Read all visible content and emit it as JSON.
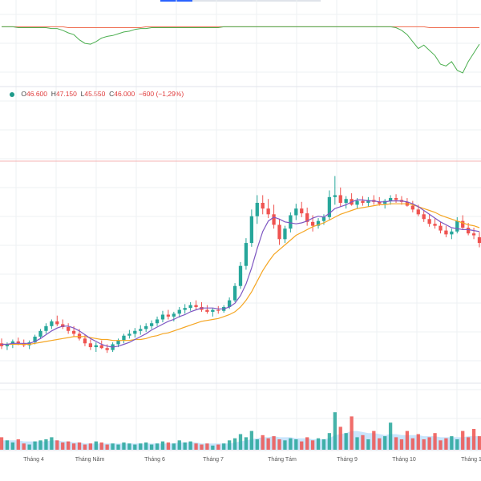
{
  "legend": {
    "o_label": "O",
    "o_value": "46.600",
    "h_label": "H",
    "h_value": "47.150",
    "l_label": "L",
    "l_value": "45.550",
    "c_label": "C",
    "c_value": "46.000",
    "change": "−600 (−1,29%)"
  },
  "colors": {
    "up": "#26a69a",
    "down": "#ef5350",
    "ma_fast": "#7e57c2",
    "ma_slow": "#f5a623",
    "indicator_green": "#4caf50",
    "indicator_red": "#ef6c4f",
    "volume_ma_area": "#bbdefb",
    "grid": "#eef0f3",
    "price_line": "#f4b4b4"
  },
  "chart_data": {
    "type": "candlestick",
    "x_axis_labels": [
      "Tháng 4",
      "Tháng Năm",
      "Tháng 6",
      "Tháng 7",
      "Tháng Tám",
      "Tháng 9",
      "Tháng 10",
      "Tháng 1"
    ],
    "grid": true,
    "last_close": 46.0,
    "price_range_approx": [
      32,
      58
    ],
    "candles_ohlc": [
      [
        35.5,
        36.0,
        34.9,
        35.2
      ],
      [
        35.2,
        35.6,
        34.8,
        35.4
      ],
      [
        35.4,
        35.9,
        35.0,
        35.7
      ],
      [
        35.7,
        36.1,
        35.3,
        35.5
      ],
      [
        35.5,
        35.9,
        35.1,
        35.3
      ],
      [
        35.3,
        35.8,
        34.9,
        35.6
      ],
      [
        35.6,
        36.4,
        35.4,
        36.2
      ],
      [
        36.2,
        37.0,
        36.0,
        36.8
      ],
      [
        36.8,
        37.6,
        36.5,
        37.3
      ],
      [
        37.3,
        38.0,
        37.0,
        37.8
      ],
      [
        37.8,
        38.4,
        37.3,
        37.5
      ],
      [
        37.5,
        38.0,
        37.0,
        37.2
      ],
      [
        37.2,
        37.6,
        36.5,
        36.8
      ],
      [
        36.8,
        37.3,
        36.2,
        36.5
      ],
      [
        36.5,
        37.0,
        35.8,
        36.0
      ],
      [
        36.0,
        36.4,
        35.2,
        35.5
      ],
      [
        35.5,
        35.9,
        34.8,
        35.1
      ],
      [
        35.1,
        35.6,
        34.6,
        35.3
      ],
      [
        35.3,
        35.8,
        34.9,
        35.0
      ],
      [
        35.0,
        35.4,
        34.5,
        34.8
      ],
      [
        34.8,
        35.6,
        34.6,
        35.4
      ],
      [
        35.4,
        36.0,
        35.1,
        35.8
      ],
      [
        35.8,
        36.5,
        35.5,
        36.3
      ],
      [
        36.3,
        36.9,
        36.0,
        36.5
      ],
      [
        36.5,
        37.1,
        36.1,
        36.8
      ],
      [
        36.8,
        37.4,
        36.4,
        37.0
      ],
      [
        37.0,
        37.6,
        36.7,
        37.3
      ],
      [
        37.3,
        37.9,
        37.0,
        37.6
      ],
      [
        37.6,
        38.3,
        37.3,
        38.0
      ],
      [
        38.0,
        38.9,
        37.7,
        38.5
      ],
      [
        38.5,
        39.0,
        38.0,
        38.3
      ],
      [
        38.3,
        38.8,
        37.8,
        38.6
      ],
      [
        38.6,
        39.3,
        38.2,
        39.0
      ],
      [
        39.0,
        39.6,
        38.6,
        39.2
      ],
      [
        39.2,
        39.8,
        38.9,
        39.5
      ],
      [
        39.5,
        40.0,
        39.0,
        39.3
      ],
      [
        39.3,
        39.8,
        38.8,
        39.0
      ],
      [
        39.0,
        39.5,
        38.6,
        38.8
      ],
      [
        38.8,
        39.2,
        38.3,
        39.0
      ],
      [
        39.0,
        39.4,
        38.6,
        38.9
      ],
      [
        38.9,
        39.5,
        38.7,
        39.3
      ],
      [
        39.3,
        40.3,
        39.1,
        40.0
      ],
      [
        40.0,
        41.8,
        39.8,
        41.5
      ],
      [
        41.5,
        44.0,
        41.2,
        43.6
      ],
      [
        43.6,
        46.5,
        43.2,
        46.0
      ],
      [
        46.0,
        49.5,
        45.6,
        48.8
      ],
      [
        48.8,
        51.0,
        48.0,
        50.2
      ],
      [
        50.2,
        51.0,
        49.0,
        49.6
      ],
      [
        49.6,
        50.6,
        48.6,
        49.0
      ],
      [
        49.0,
        50.0,
        47.5,
        47.9
      ],
      [
        47.9,
        48.5,
        45.8,
        46.4
      ],
      [
        46.4,
        47.8,
        46.0,
        47.5
      ],
      [
        47.5,
        49.2,
        47.1,
        48.9
      ],
      [
        48.9,
        50.1,
        48.4,
        49.6
      ],
      [
        49.6,
        50.3,
        48.7,
        49.1
      ],
      [
        49.1,
        49.7,
        47.8,
        48.2
      ],
      [
        48.2,
        48.9,
        47.2,
        47.8
      ],
      [
        47.8,
        48.6,
        47.5,
        48.3
      ],
      [
        48.3,
        49.0,
        47.9,
        48.7
      ],
      [
        48.7,
        51.5,
        48.4,
        50.8
      ],
      [
        50.8,
        53.0,
        50.0,
        51.0
      ],
      [
        51.0,
        51.8,
        49.8,
        50.2
      ],
      [
        50.2,
        50.9,
        49.6,
        50.6
      ],
      [
        50.6,
        51.2,
        49.9,
        50.0
      ],
      [
        50.0,
        50.7,
        49.6,
        50.4
      ],
      [
        50.4,
        50.9,
        49.9,
        50.2
      ],
      [
        50.2,
        50.8,
        49.8,
        50.5
      ],
      [
        50.5,
        51.0,
        50.0,
        50.3
      ],
      [
        50.3,
        50.8,
        49.9,
        50.1
      ],
      [
        50.1,
        50.6,
        49.6,
        50.4
      ],
      [
        50.4,
        51.0,
        50.0,
        50.7
      ],
      [
        50.7,
        51.1,
        50.2,
        50.5
      ],
      [
        50.5,
        50.9,
        50.0,
        50.3
      ],
      [
        50.3,
        50.7,
        49.8,
        49.9
      ],
      [
        49.9,
        50.4,
        49.2,
        49.5
      ],
      [
        49.5,
        50.0,
        48.8,
        49.0
      ],
      [
        49.0,
        49.4,
        48.2,
        48.5
      ],
      [
        48.5,
        49.0,
        47.7,
        48.0
      ],
      [
        48.0,
        48.6,
        47.5,
        47.8
      ],
      [
        47.8,
        48.2,
        47.0,
        47.3
      ],
      [
        47.3,
        47.8,
        46.6,
        46.9
      ],
      [
        46.9,
        47.5,
        46.4,
        47.2
      ],
      [
        47.2,
        48.7,
        47.0,
        48.3
      ],
      [
        48.3,
        48.9,
        47.4,
        47.6
      ],
      [
        47.6,
        48.1,
        46.8,
        47.0
      ],
      [
        47.0,
        47.6,
        46.4,
        46.8
      ],
      [
        46.6,
        47.15,
        45.55,
        46.0
      ]
    ],
    "series": [
      {
        "type": "line",
        "role": "moving average (short)",
        "values": [
          35.4,
          35.4,
          35.5,
          35.5,
          35.5,
          35.5,
          35.7,
          36.0,
          36.4,
          36.8,
          37.1,
          37.3,
          37.3,
          37.1,
          36.8,
          36.4,
          36.0,
          35.7,
          35.4,
          35.2,
          35.1,
          35.2,
          35.4,
          35.6,
          35.9,
          36.2,
          36.5,
          36.9,
          37.2,
          37.5,
          37.8,
          38.0,
          38.3,
          38.5,
          38.8,
          39.0,
          39.2,
          39.2,
          39.2,
          39.1,
          39.1,
          39.3,
          39.7,
          40.5,
          41.7,
          43.4,
          45.4,
          47.2,
          48.3,
          48.7,
          48.5,
          48.2,
          48.1,
          48.0,
          48.1,
          48.3,
          48.6,
          48.8,
          48.7,
          49.1,
          49.6,
          49.8,
          50.0,
          50.3,
          50.5,
          50.5,
          50.4,
          50.4,
          50.3,
          50.3,
          50.4,
          50.4,
          50.4,
          50.3,
          50.1,
          49.8,
          49.4,
          49.0,
          48.6,
          48.2,
          47.9,
          47.6,
          47.5,
          47.4,
          47.4,
          47.3,
          47.2
        ]
      },
      {
        "type": "line",
        "role": "moving average (long)",
        "values": [
          35.4,
          35.4,
          35.4,
          35.4,
          35.4,
          35.4,
          35.5,
          35.6,
          35.7,
          35.8,
          35.9,
          36.0,
          36.1,
          36.2,
          36.2,
          36.2,
          36.1,
          36.0,
          35.9,
          35.9,
          35.8,
          35.8,
          35.8,
          35.8,
          35.9,
          35.9,
          36.0,
          36.2,
          36.3,
          36.5,
          36.6,
          36.8,
          37.0,
          37.2,
          37.4,
          37.6,
          37.8,
          37.9,
          38.0,
          38.1,
          38.3,
          38.5,
          38.8,
          39.3,
          40.0,
          40.9,
          42.0,
          43.1,
          44.0,
          44.8,
          45.3,
          45.8,
          46.3,
          46.8,
          47.1,
          47.4,
          47.7,
          47.9,
          48.1,
          48.4,
          48.7,
          49.0,
          49.2,
          49.4,
          49.6,
          49.7,
          49.8,
          49.9,
          50.0,
          50.0,
          50.1,
          50.1,
          50.1,
          50.1,
          50.0,
          49.8,
          49.6,
          49.4,
          49.2,
          48.9,
          48.7,
          48.5,
          48.3,
          48.1,
          47.9,
          47.8,
          47.6
        ]
      },
      {
        "type": "bar",
        "role": "volume",
        "values": [
          1.2,
          0.9,
          0.7,
          1.0,
          0.6,
          0.5,
          0.8,
          0.9,
          1.0,
          1.2,
          0.9,
          0.7,
          0.8,
          0.6,
          0.7,
          0.5,
          0.6,
          0.8,
          0.7,
          0.5,
          0.6,
          0.5,
          0.7,
          0.6,
          0.5,
          0.6,
          0.7,
          0.5,
          0.6,
          0.8,
          0.7,
          0.6,
          0.9,
          0.7,
          0.8,
          0.6,
          0.5,
          0.6,
          0.4,
          0.5,
          0.6,
          0.9,
          1.1,
          1.5,
          1.2,
          1.8,
          1.0,
          1.4,
          1.1,
          1.3,
          1.0,
          0.9,
          1.1,
          1.0,
          0.8,
          1.2,
          0.9,
          1.1,
          1.0,
          1.6,
          3.6,
          2.2,
          1.6,
          3.2,
          1.2,
          1.4,
          1.0,
          1.8,
          1.1,
          1.3,
          2.6,
          1.2,
          1.0,
          1.8,
          1.1,
          1.5,
          1.0,
          1.2,
          1.6,
          0.9,
          1.1,
          1.3,
          1.0,
          1.8,
          1.2,
          2.0,
          1.3
        ]
      },
      {
        "type": "area",
        "role": "volume moving average",
        "values": [
          0.9,
          0.9,
          0.9,
          0.9,
          0.8,
          0.8,
          0.8,
          0.8,
          0.8,
          0.9,
          0.9,
          0.8,
          0.8,
          0.7,
          0.7,
          0.6,
          0.6,
          0.6,
          0.6,
          0.6,
          0.6,
          0.6,
          0.6,
          0.6,
          0.6,
          0.6,
          0.6,
          0.6,
          0.6,
          0.6,
          0.6,
          0.6,
          0.7,
          0.7,
          0.7,
          0.7,
          0.6,
          0.6,
          0.6,
          0.6,
          0.6,
          0.6,
          0.7,
          0.8,
          0.9,
          1.0,
          1.1,
          1.2,
          1.2,
          1.3,
          1.2,
          1.2,
          1.2,
          1.1,
          1.1,
          1.1,
          1.0,
          1.0,
          1.0,
          1.1,
          1.4,
          1.5,
          1.6,
          1.8,
          1.8,
          1.7,
          1.6,
          1.6,
          1.5,
          1.4,
          1.5,
          1.5,
          1.4,
          1.4,
          1.4,
          1.4,
          1.3,
          1.3,
          1.3,
          1.2,
          1.2,
          1.2,
          1.2,
          1.2,
          1.3,
          1.3,
          1.3
        ]
      },
      {
        "type": "line",
        "role": "indicator (green)",
        "values": [
          5,
          5,
          5,
          6,
          6,
          6,
          6,
          6,
          6,
          7,
          7,
          9,
          12,
          14,
          20,
          24,
          25,
          22,
          18,
          16,
          15,
          13,
          11,
          10,
          8,
          7,
          7,
          6,
          6,
          6,
          6,
          6,
          6,
          6,
          6,
          6,
          6,
          6,
          6,
          6,
          5,
          5,
          5,
          5,
          5,
          5,
          5,
          5,
          5,
          5,
          5,
          5,
          5,
          5,
          5,
          5,
          5,
          5,
          5,
          5,
          5,
          5,
          5,
          5,
          5,
          5,
          5,
          5,
          5,
          5,
          5,
          6,
          9,
          14,
          22,
          30,
          26,
          32,
          38,
          48,
          50,
          45,
          55,
          58,
          45,
          35,
          25
        ]
      },
      {
        "type": "line",
        "role": "indicator (red)",
        "values": [
          5,
          5,
          5,
          5,
          5,
          5,
          5,
          5,
          5,
          5,
          5,
          5,
          6,
          6,
          6,
          6,
          6,
          6,
          6,
          6,
          6,
          6,
          6,
          6,
          6,
          6,
          5,
          5,
          5,
          5,
          5,
          5,
          5,
          5,
          5,
          5,
          5,
          5,
          5,
          5,
          5,
          5,
          5,
          5,
          5,
          5,
          5,
          5,
          5,
          5,
          5,
          5,
          5,
          5,
          5,
          5,
          5,
          5,
          5,
          5,
          5,
          5,
          5,
          5,
          5,
          5,
          5,
          5,
          5,
          5,
          5,
          5,
          5,
          5,
          5,
          5,
          5,
          6,
          6,
          6,
          6,
          6,
          6,
          6,
          6,
          6,
          6
        ]
      }
    ]
  }
}
